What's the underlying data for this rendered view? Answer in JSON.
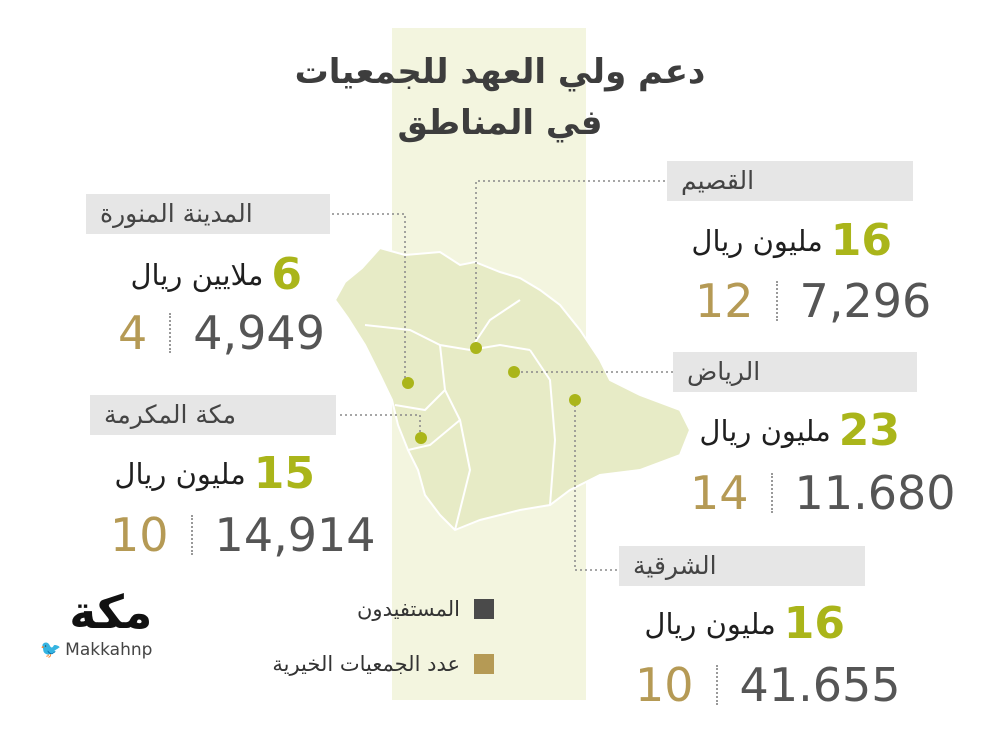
{
  "title": {
    "line1": "دعم ولي العهد للجمعيات",
    "line2": "في المناطق"
  },
  "regions": [
    {
      "id": "qassim",
      "name": "القصيم",
      "amount_number": "16",
      "amount_text": "مليون ريال",
      "beneficiaries": "7,296",
      "associations": "12"
    },
    {
      "id": "riyadh",
      "name": "الرياض",
      "amount_number": "23",
      "amount_text": "مليون ريال",
      "beneficiaries": "11.680",
      "associations": "14"
    },
    {
      "id": "eastern",
      "name": "الشرقية",
      "amount_number": "16",
      "amount_text": "مليون ريال",
      "beneficiaries": "41.655",
      "associations": "10"
    },
    {
      "id": "madinah",
      "name": "المدينة المنورة",
      "amount_number": "6",
      "amount_text": "ملايين ريال",
      "beneficiaries": "4,949",
      "associations": "4"
    },
    {
      "id": "makkah",
      "name": "مكة المكرمة",
      "amount_number": "15",
      "amount_text": "مليون ريال",
      "beneficiaries": "14,914",
      "associations": "10"
    }
  ],
  "legend": [
    {
      "label": "المستفيدون",
      "color": "#4a4a4a"
    },
    {
      "label": "عدد الجمعيات الخيرية",
      "color": "#b59a55"
    }
  ],
  "logo": {
    "mark": "مكة",
    "handle": "Makkahnp"
  },
  "colors": {
    "accent": "#aab51a",
    "association": "#b59a55",
    "beneficiary": "#555555",
    "band": "#e6e6e6",
    "map": "#e7ebc6"
  }
}
